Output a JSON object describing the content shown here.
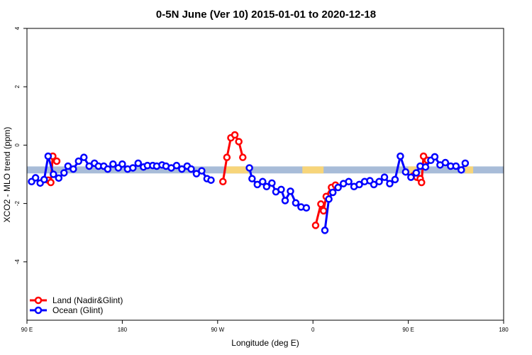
{
  "chart_data": {
    "type": "line",
    "title": "0-5N June (Ver 10)   2015-01-01 to 2020-12-18",
    "xlabel": "Longitude (deg E)",
    "ylabel": "XCO2 - MLO trend (ppm)",
    "xlim": [
      90,
      450
    ],
    "ylim": [
      -6,
      4
    ],
    "grid": false,
    "x_ticks": [
      {
        "value": 90,
        "label": "90 E"
      },
      {
        "value": 162,
        "label": "180"
      },
      {
        "value": 234,
        "label": "90 W"
      },
      {
        "value": 306,
        "label": "0"
      },
      {
        "value": 378,
        "label": "90 E"
      },
      {
        "value": 450,
        "label": "180"
      }
    ],
    "y_ticks": [
      {
        "value": 4,
        "label": "4"
      },
      {
        "value": 2,
        "label": "2"
      },
      {
        "value": 0,
        "label": "0"
      },
      {
        "value": -2,
        "label": "-2"
      },
      {
        "value": -4,
        "label": "-4"
      }
    ],
    "band": {
      "y_center": -0.85,
      "half_width": 0.12,
      "base_color": "#a8bcd8",
      "land_color": "#f7d57a",
      "land_segments": [
        [
          240.5,
          257
        ],
        [
          298,
          314
        ],
        [
          378,
          384
        ],
        [
          421,
          427
        ]
      ]
    },
    "legend": {
      "placement": "bottom-left",
      "entries": [
        {
          "name": "Land (Nadir&Glint)",
          "color": "#ff0000"
        },
        {
          "name": "Ocean (Glint)",
          "color": "#0000ff"
        }
      ]
    },
    "series": [
      {
        "name": "Land (Nadir&Glint)",
        "color": "#ff0000",
        "segments": [
          [
            [
              106,
              -1.2
            ],
            [
              108,
              -1.28
            ],
            [
              109.5,
              -0.38
            ],
            [
              112.5,
              -0.55
            ]
          ],
          [
            [
              238,
              -1.25
            ],
            [
              241,
              -0.42
            ],
            [
              244,
              0.25
            ],
            [
              247,
              0.35
            ],
            [
              250,
              0.12
            ],
            [
              253,
              -0.42
            ]
          ],
          [
            [
              308,
              -2.75
            ],
            [
              312,
              -2.02
            ],
            [
              314,
              -2.25
            ],
            [
              316,
              -1.76
            ],
            [
              320,
              -1.45
            ],
            [
              323,
              -1.37
            ]
          ],
          [
            [
              382,
              -1.05
            ],
            [
              384.5,
              -1.1
            ],
            [
              387,
              -1.15
            ],
            [
              388,
              -1.28
            ],
            [
              389.5,
              -0.38
            ],
            [
              392.5,
              -0.52
            ]
          ]
        ]
      },
      {
        "name": "Ocean (Glint)",
        "color": "#0000ff",
        "segments": [
          [
            [
              93.5,
              -1.25
            ],
            [
              96.5,
              -1.12
            ],
            [
              100,
              -1.3
            ],
            [
              103,
              -1.18
            ],
            [
              106,
              -0.38
            ],
            [
              110,
              -1.0
            ],
            [
              114,
              -1.13
            ],
            [
              118,
              -0.95
            ],
            [
              121,
              -0.72
            ],
            [
              125,
              -0.82
            ],
            [
              129,
              -0.55
            ],
            [
              133,
              -0.42
            ],
            [
              137,
              -0.72
            ],
            [
              141,
              -0.62
            ],
            [
              144,
              -0.72
            ],
            [
              148,
              -0.72
            ],
            [
              151,
              -0.82
            ],
            [
              155,
              -0.65
            ],
            [
              159,
              -0.78
            ],
            [
              162,
              -0.65
            ],
            [
              166,
              -0.82
            ],
            [
              170,
              -0.78
            ],
            [
              174,
              -0.62
            ],
            [
              178,
              -0.75
            ],
            [
              181,
              -0.7
            ],
            [
              185,
              -0.7
            ],
            [
              188,
              -0.72
            ],
            [
              192,
              -0.68
            ],
            [
              195,
              -0.72
            ],
            [
              199,
              -0.78
            ],
            [
              203,
              -0.7
            ],
            [
              207,
              -0.82
            ],
            [
              211,
              -0.72
            ],
            [
              214,
              -0.82
            ],
            [
              218,
              -0.98
            ],
            [
              222,
              -0.88
            ],
            [
              226,
              -1.15
            ],
            [
              229,
              -1.2
            ]
          ],
          [
            [
              258,
              -0.78
            ],
            [
              260,
              -1.15
            ],
            [
              264,
              -1.35
            ],
            [
              268,
              -1.25
            ],
            [
              271,
              -1.42
            ],
            [
              275,
              -1.3
            ],
            [
              278,
              -1.6
            ],
            [
              282,
              -1.52
            ],
            [
              285,
              -1.9
            ],
            [
              289,
              -1.58
            ],
            [
              293,
              -1.98
            ],
            [
              297,
              -2.12
            ],
            [
              301,
              -2.15
            ]
          ],
          [
            [
              315,
              -2.92
            ],
            [
              318,
              -1.85
            ],
            [
              321,
              -1.62
            ],
            [
              325,
              -1.45
            ],
            [
              329,
              -1.32
            ],
            [
              333,
              -1.25
            ],
            [
              337,
              -1.42
            ],
            [
              341,
              -1.35
            ],
            [
              345,
              -1.25
            ],
            [
              349,
              -1.22
            ],
            [
              352,
              -1.35
            ],
            [
              356,
              -1.25
            ],
            [
              360,
              -1.1
            ],
            [
              364,
              -1.32
            ],
            [
              368,
              -1.18
            ],
            [
              372,
              -0.38
            ],
            [
              376,
              -0.92
            ],
            [
              380,
              -1.1
            ],
            [
              384,
              -0.95
            ],
            [
              387,
              -0.72
            ],
            [
              391,
              -0.75
            ],
            [
              395,
              -0.52
            ],
            [
              398,
              -0.4
            ],
            [
              402,
              -0.68
            ],
            [
              406,
              -0.6
            ],
            [
              410,
              -0.72
            ],
            [
              414,
              -0.72
            ],
            [
              418,
              -0.85
            ],
            [
              421,
              -0.62
            ]
          ]
        ]
      }
    ]
  }
}
